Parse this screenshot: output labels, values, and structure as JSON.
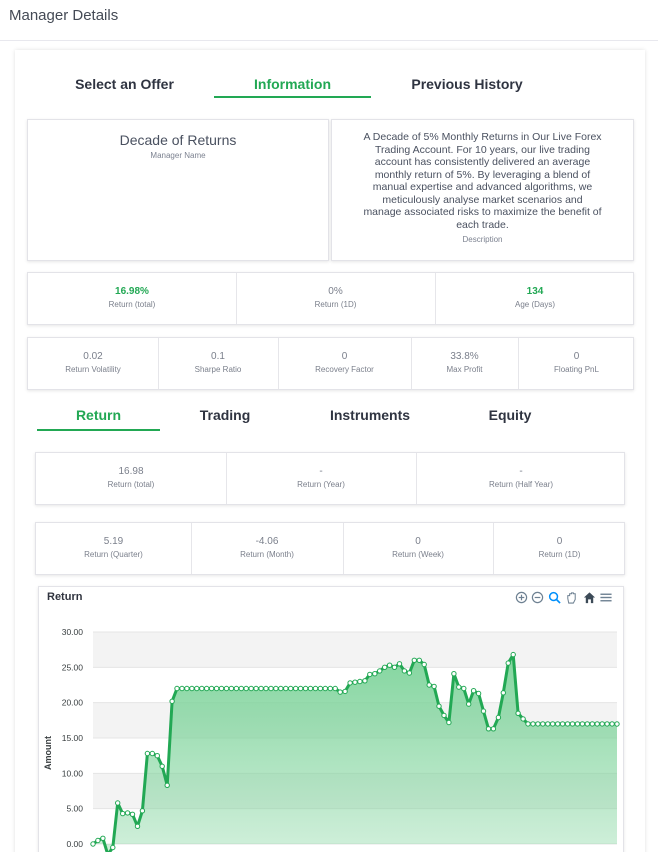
{
  "header": {
    "title": "Manager Details"
  },
  "top_tabs": [
    {
      "label": "Select an Offer",
      "active": false
    },
    {
      "label": "Information",
      "active": true
    },
    {
      "label": "Previous History",
      "active": false
    }
  ],
  "info": {
    "name": "Decade of Returns",
    "name_label": "Manager Name",
    "description_lines": [
      "A Decade of 5% Monthly Returns in Our Live Forex",
      "Trading Account. For 10 years, our live trading",
      "account has consistently delivered an average",
      "monthly return of 5%. By leveraging a blend of",
      "manual expertise and advanced algorithms, we",
      "meticulously analyse market scenarios and",
      "manage associated risks to maximize the benefit of",
      "each trade."
    ],
    "description_label": "Description"
  },
  "summary": [
    {
      "value": "16.98%",
      "label": "Return (total)",
      "highlight": true
    },
    {
      "value": "0%",
      "label": "Return (1D)",
      "highlight": false
    },
    {
      "value": "134",
      "label": "Age (Days)",
      "highlight": true
    }
  ],
  "metrics": [
    {
      "value": "0.02",
      "label": "Return Volatility"
    },
    {
      "value": "0.1",
      "label": "Sharpe Ratio"
    },
    {
      "value": "0",
      "label": "Recovery Factor"
    },
    {
      "value": "33.8%",
      "label": "Max Profit"
    },
    {
      "value": "0",
      "label": "Floating PnL"
    }
  ],
  "sub_tabs": [
    {
      "label": "Return",
      "active": true
    },
    {
      "label": "Trading",
      "active": false
    },
    {
      "label": "Instruments",
      "active": false
    },
    {
      "label": "Equity",
      "active": false
    }
  ],
  "returns_row1": [
    {
      "value": "16.98",
      "label": "Return (total)"
    },
    {
      "value": "-",
      "label": "Return (Year)"
    },
    {
      "value": "-",
      "label": "Return (Half Year)"
    }
  ],
  "returns_row2": [
    {
      "value": "5.19",
      "label": "Return (Quarter)"
    },
    {
      "value": "-4.06",
      "label": "Return (Month)"
    },
    {
      "value": "0",
      "label": "Return (Week)"
    },
    {
      "value": "0",
      "label": "Return (1D)"
    }
  ],
  "chart_toolbar": [
    "zoom-in-icon",
    "zoom-out-icon",
    "zoom-select-icon",
    "pan-hand-icon",
    "home-icon",
    "menu-icon"
  ],
  "colors": {
    "accent": "#22a854",
    "area_fill": "#7dd39a"
  },
  "chart_data": {
    "type": "area",
    "title": "Return",
    "ylabel": "Amount",
    "xlabel": "",
    "ylim": [
      0,
      30
    ],
    "yticks": [
      "0.00",
      "5.00",
      "10.00",
      "15.00",
      "20.00",
      "25.00",
      "30.00"
    ],
    "grid": true,
    "series": [
      {
        "values": [
          0,
          0.5,
          0.8,
          -1.5,
          -0.5,
          5.8,
          4.3,
          4.4,
          4.2,
          2.5,
          4.7,
          12.8,
          12.8,
          12.5,
          11,
          8.3,
          20.2,
          22,
          22,
          22,
          22,
          22,
          22,
          22,
          22,
          22,
          22,
          22,
          22,
          22,
          22,
          22,
          22,
          22,
          22,
          22,
          22,
          22,
          22,
          22,
          22,
          22,
          22,
          22,
          22,
          22,
          22,
          22,
          22,
          22,
          21.5,
          21.6,
          22.8,
          22.9,
          23,
          23.1,
          24,
          24.1,
          24.5,
          25,
          25.3,
          25,
          25.5,
          24.5,
          24.2,
          26,
          26,
          25.4,
          22.5,
          22.3,
          19.5,
          18.2,
          17.2,
          24.1,
          22.2,
          22,
          19.8,
          21.7,
          21.3,
          18.8,
          16.3,
          16.3,
          17.9,
          21.4,
          25.6,
          26.8,
          18.5,
          17.7,
          17,
          17,
          17,
          17,
          17,
          17,
          17,
          17,
          17,
          17,
          17,
          17,
          17,
          17,
          17,
          17,
          17,
          17,
          16.98
        ]
      }
    ]
  }
}
